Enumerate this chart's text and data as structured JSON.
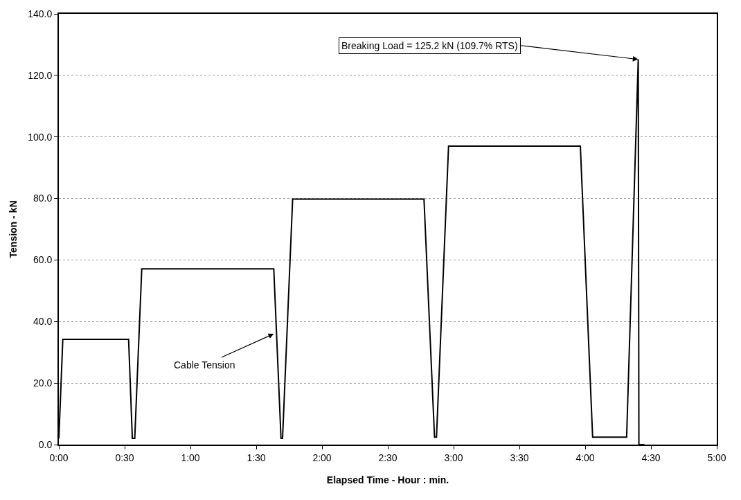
{
  "chart_data": {
    "type": "line",
    "xlabel": "Elapsed Time - Hour : min.",
    "ylabel": "Tension - kN",
    "series": [
      {
        "color": "#000000",
        "x": [
          0,
          1.8,
          31.8,
          33.5,
          34.6,
          37.8,
          98.0,
          101.3,
          102.0,
          106.6,
          166.5,
          171.3,
          172.2,
          177.7,
          237.8,
          243.4,
          258.9,
          264.2,
          264.5,
          267
        ],
        "values": [
          2,
          34.2,
          34.2,
          2.0,
          2.0,
          57.1,
          57.1,
          2.0,
          2.0,
          79.8,
          79.8,
          2.4,
          2.4,
          97.0,
          97.0,
          2.4,
          2.4,
          125.2,
          0,
          0
        ]
      }
    ],
    "xlim": [
      0,
      300
    ],
    "ylim": [
      0,
      140
    ],
    "xticks": [
      {
        "value": 0,
        "label": "0:00"
      },
      {
        "value": 30,
        "label": "0:30"
      },
      {
        "value": 60,
        "label": "1:00"
      },
      {
        "value": 90,
        "label": "1:30"
      },
      {
        "value": 120,
        "label": "2:00"
      },
      {
        "value": 150,
        "label": "2:30"
      },
      {
        "value": 180,
        "label": "3:00"
      },
      {
        "value": 210,
        "label": "3:30"
      },
      {
        "value": 240,
        "label": "4:00"
      },
      {
        "value": 270,
        "label": "4:30"
      },
      {
        "value": 300,
        "label": "5:00"
      }
    ],
    "yticks": [
      {
        "value": 0,
        "label": "0.0"
      },
      {
        "value": 20,
        "label": "20.0"
      },
      {
        "value": 40,
        "label": "40.0"
      },
      {
        "value": 60,
        "label": "60.0"
      },
      {
        "value": 80,
        "label": "80.0"
      },
      {
        "value": 100,
        "label": "100.0"
      },
      {
        "value": 120,
        "label": "120.0"
      },
      {
        "value": 140,
        "label": "140.0"
      }
    ],
    "grid": "y",
    "marker": "none",
    "line_style": "solid",
    "annotations": [
      {
        "text": "Breaking Load = 125.2 kN (109.7% RTS)",
        "x": 264.2,
        "y": 125.2
      },
      {
        "text": "Cable Tension",
        "x": 98.0,
        "y": 36
      }
    ]
  }
}
